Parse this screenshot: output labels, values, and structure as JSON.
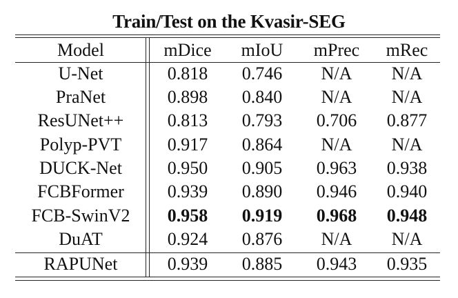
{
  "table": {
    "caption": "Train/Test on the Kvasir-SEG",
    "headers": [
      "Model",
      "mDice",
      "mIoU",
      "mPrec",
      "mRec"
    ],
    "rows": [
      {
        "model": "U-Net",
        "mdice": "0.818",
        "miou": "0.746",
        "mprec": "N/A",
        "mrec": "N/A"
      },
      {
        "model": "PraNet",
        "mdice": "0.898",
        "miou": "0.840",
        "mprec": "N/A",
        "mrec": "N/A"
      },
      {
        "model": "ResUNet++",
        "mdice": "0.813",
        "miou": "0.793",
        "mprec": "0.706",
        "mrec": "0.877"
      },
      {
        "model": "Polyp-PVT",
        "mdice": "0.917",
        "miou": "0.864",
        "mprec": "N/A",
        "mrec": "N/A"
      },
      {
        "model": "DUCK-Net",
        "mdice": "0.950",
        "miou": "0.905",
        "mprec": "0.963",
        "mrec": "0.938"
      },
      {
        "model": "FCBFormer",
        "mdice": "0.939",
        "miou": "0.890",
        "mprec": "0.946",
        "mrec": "0.940"
      },
      {
        "model": "FCB-SwinV2",
        "mdice": "0.958",
        "miou": "0.919",
        "mprec": "0.968",
        "mrec": "0.948"
      },
      {
        "model": "DuAT",
        "mdice": "0.924",
        "miou": "0.876",
        "mprec": "N/A",
        "mrec": "N/A"
      },
      {
        "model": "RAPUNet",
        "mdice": "0.939",
        "miou": "0.885",
        "mprec": "0.943",
        "mrec": "0.935"
      }
    ],
    "bold_row_model": "FCB-SwinV2"
  }
}
